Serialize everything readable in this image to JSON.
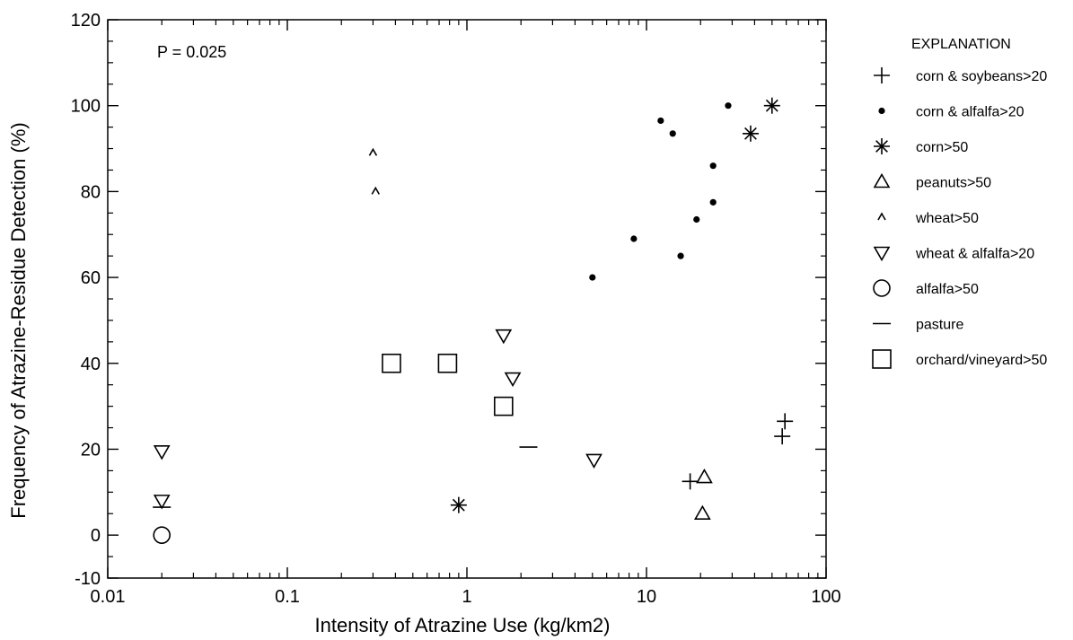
{
  "chart_data": {
    "type": "scatter",
    "title": "",
    "xlabel": "Intensity of Atrazine Use (kg/km2)",
    "ylabel": "Frequency of Atrazine-Residue Detection (%)",
    "xscale": "log",
    "xlim": [
      0.01,
      100
    ],
    "ylim": [
      -10,
      120
    ],
    "xticks": [
      0.01,
      0.1,
      1,
      10,
      100
    ],
    "xtick_labels": [
      "0.01",
      "0.1",
      "1",
      "10",
      "100"
    ],
    "yticks": [
      -10,
      0,
      20,
      40,
      60,
      80,
      100,
      120
    ],
    "ytick_labels": [
      "-10",
      "0",
      "20",
      "40",
      "60",
      "80",
      "100",
      "120"
    ],
    "grid": false,
    "annotation": "P = 0.025",
    "legend": {
      "title": "EXPLANATION",
      "placement": "right"
    },
    "series": [
      {
        "name": "corn & soybeans>20",
        "marker": "plus",
        "points": [
          [
            17.5,
            12.5
          ],
          [
            57,
            23
          ],
          [
            59,
            26.5
          ]
        ]
      },
      {
        "name": "corn & alfalfa>20",
        "marker": "dot",
        "points": [
          [
            12,
            96.5
          ],
          [
            14,
            93.5
          ],
          [
            28.5,
            100
          ],
          [
            23.5,
            86
          ],
          [
            23.5,
            77.5
          ],
          [
            19,
            73.5
          ],
          [
            15.5,
            65
          ],
          [
            8.5,
            69
          ],
          [
            5,
            60
          ]
        ]
      },
      {
        "name": "corn>50",
        "marker": "asterisk",
        "points": [
          [
            50,
            100
          ],
          [
            38,
            93.5
          ],
          [
            0.9,
            7
          ]
        ]
      },
      {
        "name": "peanuts>50",
        "marker": "triangle-up",
        "points": [
          [
            21,
            13.5
          ],
          [
            20.5,
            5
          ]
        ]
      },
      {
        "name": "wheat>50",
        "marker": "caret",
        "points": [
          [
            0.3,
            89
          ],
          [
            0.31,
            80
          ]
        ]
      },
      {
        "name": "wheat & alfalfa>20",
        "marker": "triangle-down",
        "points": [
          [
            0.02,
            19.5
          ],
          [
            0.02,
            8
          ],
          [
            1.6,
            46.5
          ],
          [
            1.8,
            36.5
          ],
          [
            5.1,
            17.5
          ]
        ]
      },
      {
        "name": "alfalfa>50",
        "marker": "circle",
        "points": [
          [
            0.02,
            0
          ]
        ]
      },
      {
        "name": "pasture",
        "marker": "dash",
        "points": [
          [
            2.2,
            20.5
          ],
          [
            0.02,
            6.5
          ]
        ]
      },
      {
        "name": "orchard/vineyard>50",
        "marker": "square",
        "points": [
          [
            0.38,
            40
          ],
          [
            0.78,
            40
          ],
          [
            1.6,
            30
          ]
        ]
      }
    ]
  }
}
